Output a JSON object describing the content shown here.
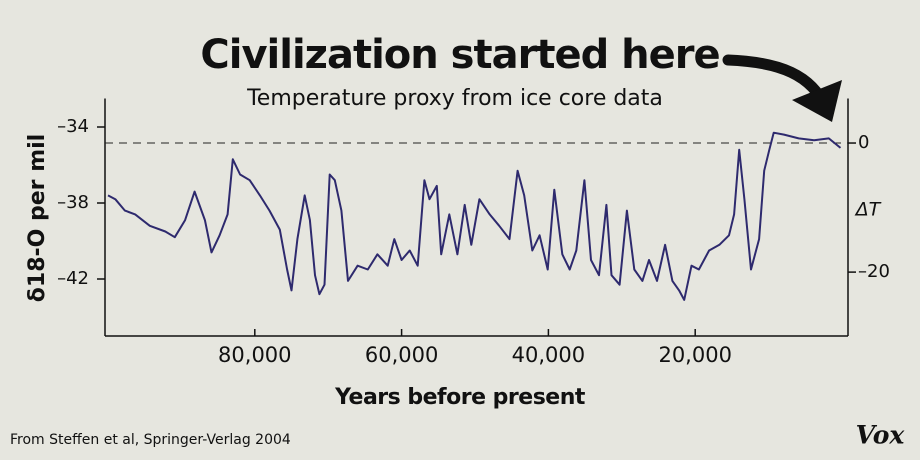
{
  "chart_data": {
    "type": "line",
    "title": "Civilization started here",
    "subtitle": "Temperature proxy from ice core data",
    "y_label": "δ18-O per mil",
    "y2_label": "ΔT",
    "x_label": "Years before present",
    "source": "From Steffen et al, Springer-Verlag 2004",
    "brand": "Vox",
    "x": [
      100000,
      99000,
      97700,
      96300,
      94300,
      92200,
      90900,
      89500,
      88200,
      86800,
      85900,
      84800,
      83700,
      83000,
      82000,
      80700,
      79300,
      78000,
      76600,
      75600,
      75000,
      74200,
      73200,
      72500,
      71800,
      71200,
      70500,
      69800,
      69100,
      68200,
      67300,
      66000,
      64600,
      63300,
      61900,
      61000,
      60000,
      58900,
      57800,
      56900,
      56200,
      55200,
      54600,
      53500,
      52400,
      51400,
      50500,
      49400,
      48000,
      46700,
      45300,
      44200,
      43300,
      42200,
      41200,
      40100,
      39200,
      38100,
      37100,
      36200,
      35100,
      34200,
      33100,
      32100,
      31400,
      30300,
      29300,
      28300,
      27200,
      26300,
      25200,
      24100,
      23100,
      22200,
      21500,
      20500,
      19500,
      18100,
      16700,
      15400,
      14700,
      14000,
      13300,
      12400,
      11300,
      10600,
      9900,
      9300,
      7900,
      5900,
      3800,
      1800,
      200
    ],
    "series": [
      {
        "name": "δ18-O",
        "color": "#2e2a6e",
        "values": [
          -37.6,
          -37.8,
          -38.4,
          -38.6,
          -39.2,
          -39.5,
          -39.8,
          -38.9,
          -37.4,
          -38.9,
          -40.6,
          -39.7,
          -38.6,
          -35.7,
          -36.5,
          -36.8,
          -37.6,
          -38.4,
          -39.4,
          -41.5,
          -42.6,
          -39.9,
          -37.6,
          -38.9,
          -41.8,
          -42.8,
          -42.3,
          -36.5,
          -36.8,
          -38.4,
          -42.1,
          -41.3,
          -41.5,
          -40.7,
          -41.3,
          -39.9,
          -41.0,
          -40.5,
          -41.3,
          -36.8,
          -37.8,
          -37.1,
          -40.7,
          -38.6,
          -40.7,
          -38.1,
          -40.2,
          -37.8,
          -38.6,
          -39.2,
          -39.9,
          -36.3,
          -37.6,
          -40.5,
          -39.7,
          -41.5,
          -37.3,
          -40.7,
          -41.5,
          -40.5,
          -36.8,
          -41.0,
          -41.8,
          -38.1,
          -41.8,
          -42.3,
          -38.4,
          -41.5,
          -42.1,
          -41.0,
          -42.1,
          -40.2,
          -42.1,
          -42.6,
          -43.1,
          -41.3,
          -41.5,
          -40.5,
          -40.2,
          -39.7,
          -38.6,
          -35.2,
          -37.8,
          -41.5,
          -39.9,
          -36.3,
          -35.2,
          -34.3,
          -34.4,
          -34.6,
          -34.7,
          -34.6,
          -35.1
        ]
      }
    ],
    "xlim": [
      100000,
      0
    ],
    "xticks": [
      {
        "value": 80000,
        "label": "80,000"
      },
      {
        "value": 60000,
        "label": "60,000"
      },
      {
        "value": 40000,
        "label": "40,000"
      },
      {
        "value": 20000,
        "label": "20,000"
      }
    ],
    "ylim": [
      -45,
      -32.5
    ],
    "yticks": [
      {
        "value": -34,
        "label": "–34"
      },
      {
        "value": -38,
        "label": "–38"
      },
      {
        "value": -42,
        "label": "–42"
      }
    ],
    "y2lim": [
      -29.9,
      6.9
    ],
    "y2ticks": [
      0,
      {
        "value": -20,
        "label": "–20"
      }
    ],
    "reference_line": {
      "axis": "y2",
      "value": 0,
      "style": "dashed"
    },
    "grid": false
  }
}
